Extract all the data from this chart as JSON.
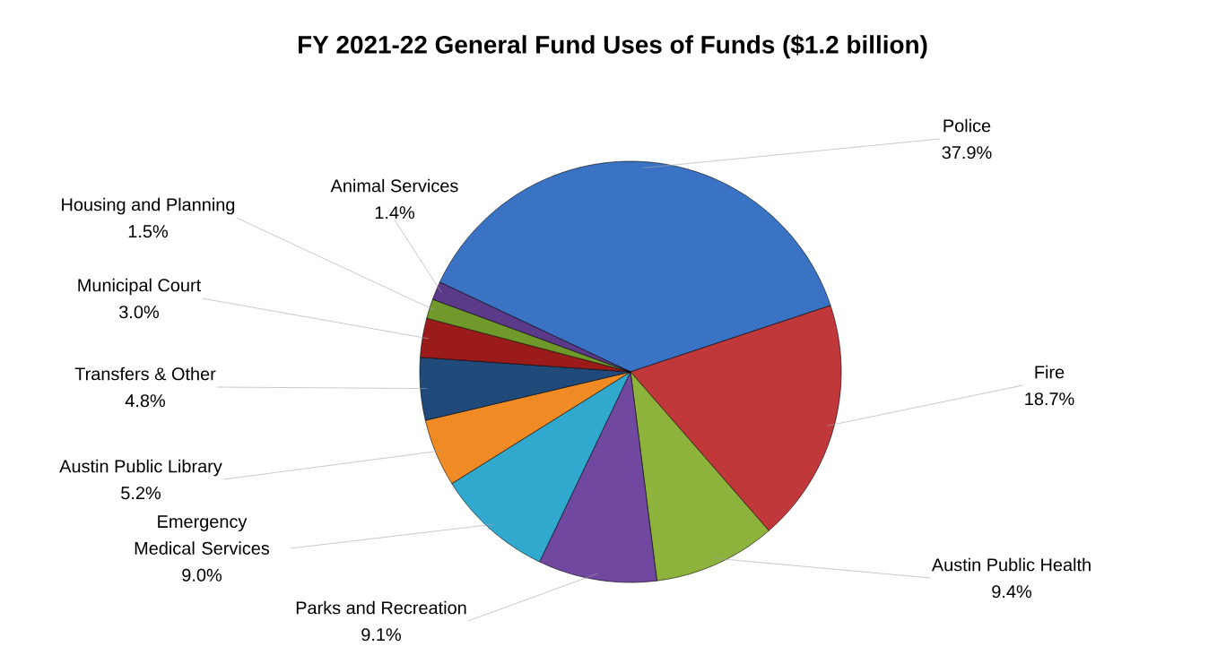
{
  "chart_data": {
    "type": "pie",
    "title": "FY 2021-22 General Fund Uses of Funds ($1.2 billion)",
    "categories": [
      "Police",
      "Fire",
      "Austin Public Health",
      "Parks and Recreation",
      "Emergency Medical Services",
      "Austin Public Library",
      "Transfers & Other",
      "Municipal Court",
      "Housing and Planning",
      "Animal Services"
    ],
    "values": [
      37.9,
      18.7,
      9.4,
      9.1,
      9.0,
      5.2,
      4.8,
      3.0,
      1.5,
      1.4
    ],
    "value_labels": [
      "37.9%",
      "18.7%",
      "9.4%",
      "9.1%",
      "9.0%",
      "5.2%",
      "4.8%",
      "3.0%",
      "1.5%",
      "1.4%"
    ],
    "colors": [
      "#3a73c4",
      "#c0383a",
      "#8db33c",
      "#7048a0",
      "#31a9cf",
      "#f08a25",
      "#1f4a7a",
      "#9b1b1b",
      "#6f9a2b",
      "#5b3a8a"
    ]
  }
}
